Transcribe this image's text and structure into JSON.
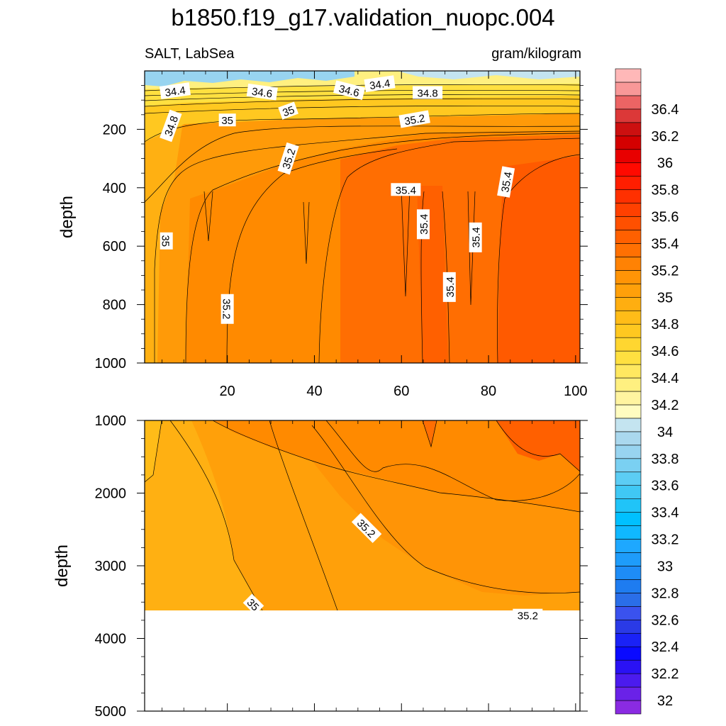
{
  "title": "b1850.f19_g17.validation_nuopc.004",
  "chart_data": {
    "type": "heatmap",
    "variable": "SALT, LabSea",
    "units": "gram/kilogram",
    "x_ticks": [
      20,
      40,
      60,
      80,
      100
    ],
    "xlim": [
      1,
      101
    ],
    "upper_panel": {
      "ylabel": "depth",
      "ylim": [
        0,
        1000
      ],
      "reversed_y": true,
      "y_ticks": [
        200,
        400,
        600,
        800,
        1000
      ],
      "contour_labels": [
        {
          "x": 8,
          "y": 68,
          "text": "34.4",
          "rot": -8
        },
        {
          "x": 28,
          "y": 72,
          "text": "34.6",
          "rot": 8
        },
        {
          "x": 48,
          "y": 66,
          "text": "34.6",
          "rot": 14
        },
        {
          "x": 55,
          "y": 44,
          "text": "34.4",
          "rot": -8
        },
        {
          "x": 66,
          "y": 74,
          "text": "34.8",
          "rot": 0
        },
        {
          "x": 7,
          "y": 188,
          "text": "34.8",
          "rot": -70
        },
        {
          "x": 20,
          "y": 168,
          "text": "35",
          "rot": 0
        },
        {
          "x": 34,
          "y": 136,
          "text": "35",
          "rot": -20
        },
        {
          "x": 63,
          "y": 165,
          "text": "35.2",
          "rot": -10
        },
        {
          "x": 34,
          "y": 300,
          "text": "35.2",
          "rot": -72
        },
        {
          "x": 61,
          "y": 406,
          "text": "35.4",
          "rot": 0
        },
        {
          "x": 84,
          "y": 380,
          "text": "35.4",
          "rot": -80
        },
        {
          "x": 65,
          "y": 525,
          "text": "35.4",
          "rot": -90
        },
        {
          "x": 77,
          "y": 570,
          "text": "35.4",
          "rot": -90
        },
        {
          "x": 71,
          "y": 740,
          "text": "35.4",
          "rot": -90
        },
        {
          "x": 6,
          "y": 582,
          "text": "35",
          "rot": 90
        },
        {
          "x": 20,
          "y": 815,
          "text": "35.2",
          "rot": 90
        }
      ]
    },
    "lower_panel": {
      "ylabel": "depth",
      "ylim": [
        1000,
        5000
      ],
      "reversed_y": true,
      "y_ticks": [
        1000,
        2000,
        3000,
        4000,
        5000
      ],
      "bottom_depth": 3870,
      "contour_labels": [
        {
          "x": 52,
          "y": 2480,
          "text": "35.2",
          "rot": 45
        },
        {
          "x": 89,
          "y": 3680,
          "text": "35.2",
          "rot": 0
        },
        {
          "x": 26,
          "y": 3530,
          "text": "35",
          "rot": 45
        }
      ]
    },
    "colorbar": {
      "levels": [
        32,
        32.1,
        32.2,
        32.3,
        32.4,
        32.5,
        32.6,
        32.7,
        32.8,
        32.9,
        33,
        33.1,
        33.2,
        33.3,
        33.4,
        33.5,
        33.6,
        33.7,
        33.8,
        33.9,
        34,
        34.1,
        34.2,
        34.3,
        34.4,
        34.5,
        34.6,
        34.7,
        34.8,
        34.9,
        35,
        35.1,
        35.2,
        35.3,
        35.4,
        35.5,
        35.6,
        35.7,
        35.8,
        35.9,
        36,
        36.1,
        36.2,
        36.3,
        36.4,
        36.5,
        36.6
      ],
      "labels": [
        "32",
        "32.2",
        "32.4",
        "32.6",
        "32.8",
        "33",
        "33.2",
        "33.4",
        "33.6",
        "33.8",
        "34",
        "34.2",
        "34.4",
        "34.6",
        "34.8",
        "35",
        "35.2",
        "35.4",
        "35.6",
        "35.8",
        "36",
        "36.2",
        "36.4"
      ],
      "colors": [
        "#8a2be2",
        "#6a22e8",
        "#4b1bee",
        "#2a12f4",
        "#0a0aff",
        "#1a22f6",
        "#2a3ae6",
        "#3a52ee",
        "#2a6ee8",
        "#1e7cf0",
        "#1e8cf6",
        "#1e9cfa",
        "#1ea8ff",
        "#10b8ff",
        "#00c0ff",
        "#20c4f8",
        "#40c8f4",
        "#5ccdf4",
        "#7ad0f2",
        "#98d4f0",
        "#aad8ee",
        "#c4e4f0",
        "#fffcc0",
        "#fff4a0",
        "#fff080",
        "#ffe860",
        "#ffe040",
        "#ffd630",
        "#ffc820",
        "#ffbc18",
        "#ffae10",
        "#ffa00a",
        "#ff9406",
        "#ff8204",
        "#ff7002",
        "#ff6000",
        "#ff5000",
        "#ff4000",
        "#ff3000",
        "#ff1e00",
        "#ff0a00",
        "#e80000",
        "#d40000",
        "#cc1010",
        "#dc3838",
        "#ec6464",
        "#f89898",
        "#ffb8b8"
      ]
    }
  }
}
